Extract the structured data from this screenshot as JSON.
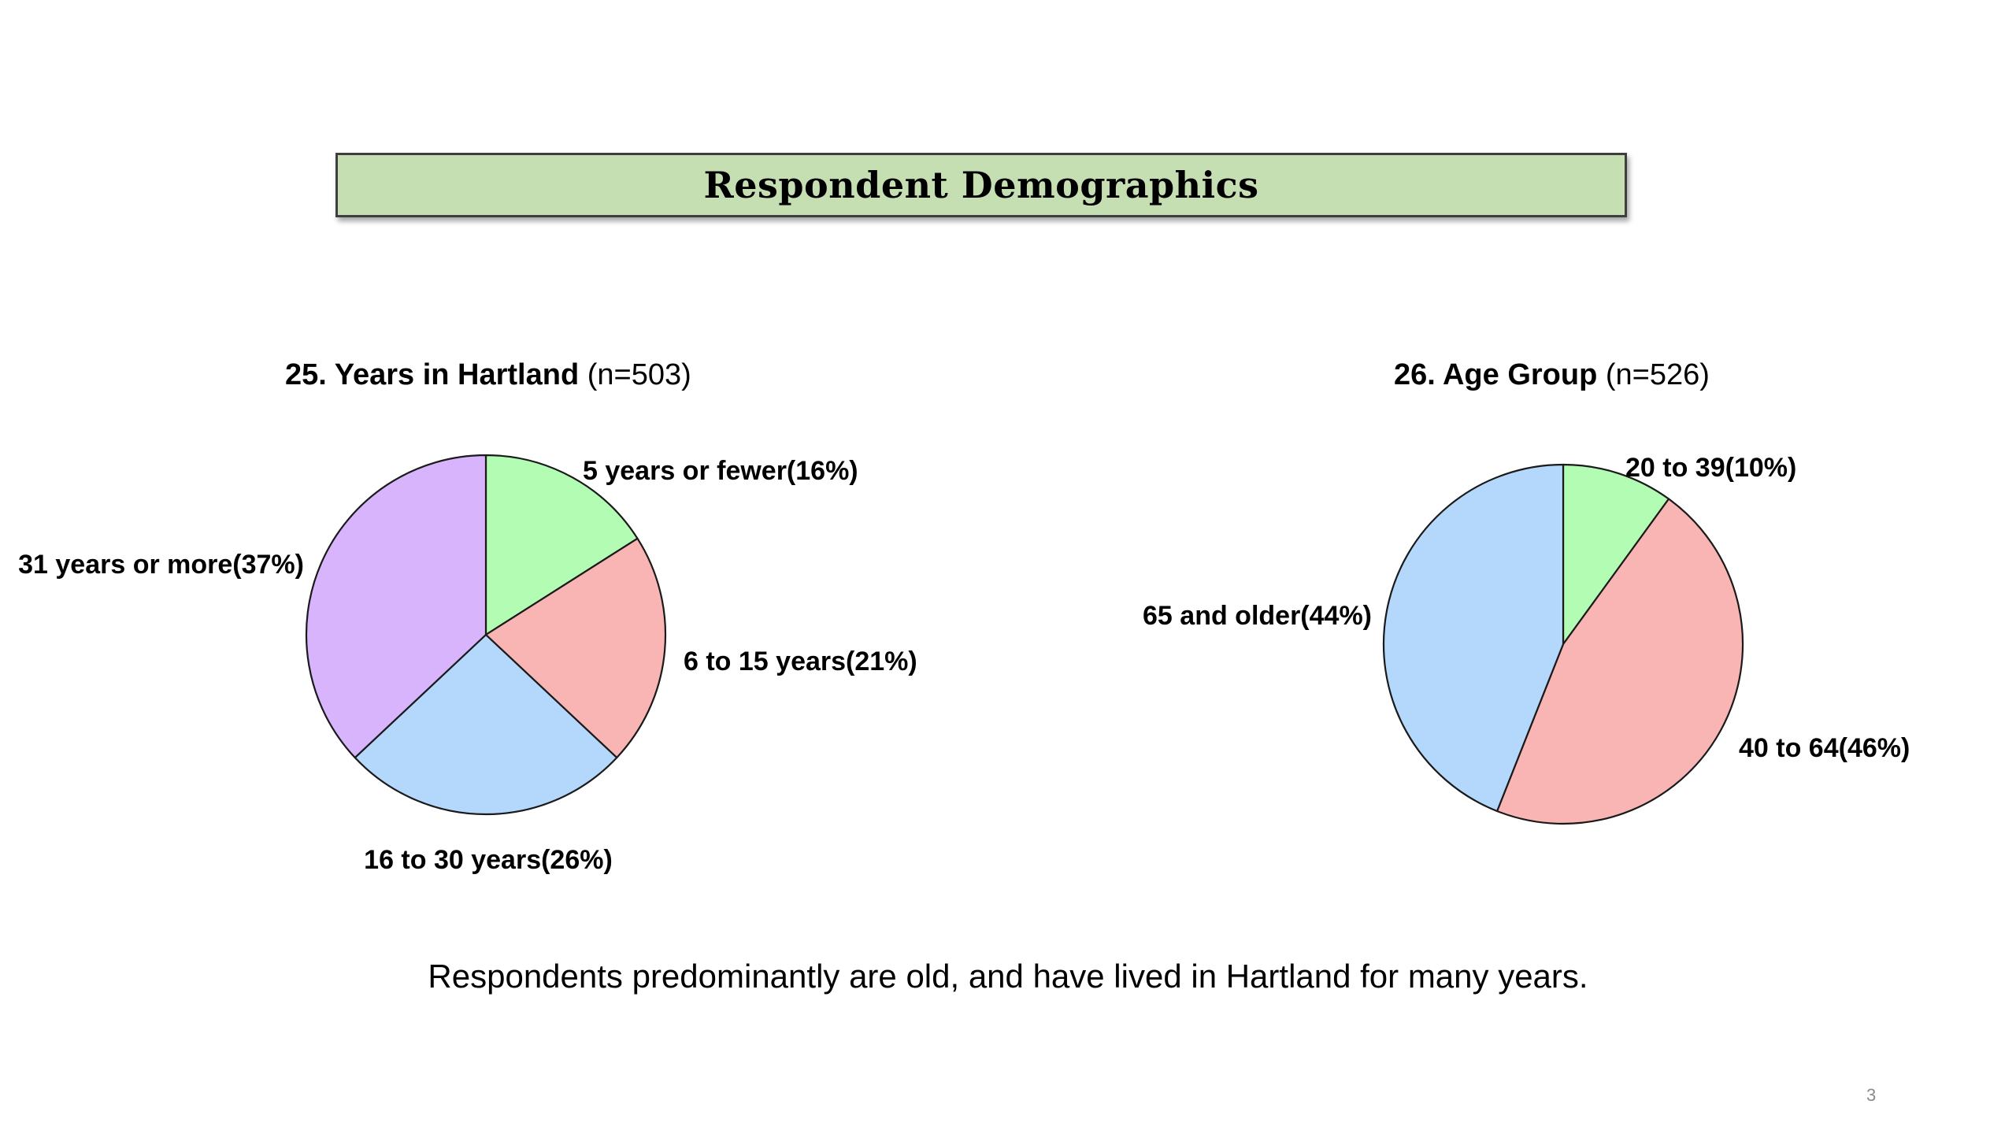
{
  "header": {
    "title": "Respondent Demographics"
  },
  "chart_data": [
    {
      "type": "pie",
      "title": "25. Years in Hartland",
      "subtitle": "(n=503)",
      "categories": [
        "5 years or fewer",
        "6 to 15 years",
        "16 to 30 years",
        "31 years or more"
      ],
      "values": [
        16,
        21,
        26,
        37
      ],
      "labels": [
        "5 years or fewer(16%)",
        "6 to 15 years(21%)",
        "16 to 30 years(26%)",
        "31 years or more(37%)"
      ],
      "colors": [
        "#b3fcb3",
        "#f9b4b4",
        "#b4d8fb",
        "#d7b4fb"
      ],
      "legend": "none"
    },
    {
      "type": "pie",
      "title": "26. Age Group",
      "subtitle": "(n=526)",
      "categories": [
        "20 to 39",
        "40 to 64",
        "65 and older"
      ],
      "values": [
        10,
        46,
        44
      ],
      "labels": [
        "20 to 39(10%)",
        "40 to 64(46%)",
        "65 and older(44%)"
      ],
      "colors": [
        "#b3fcb3",
        "#f9b4b4",
        "#b4d8fb"
      ],
      "legend": "none"
    }
  ],
  "footer": {
    "text": "Respondents predominantly are old, and have lived in Hartland for many years."
  },
  "page_number": "3"
}
